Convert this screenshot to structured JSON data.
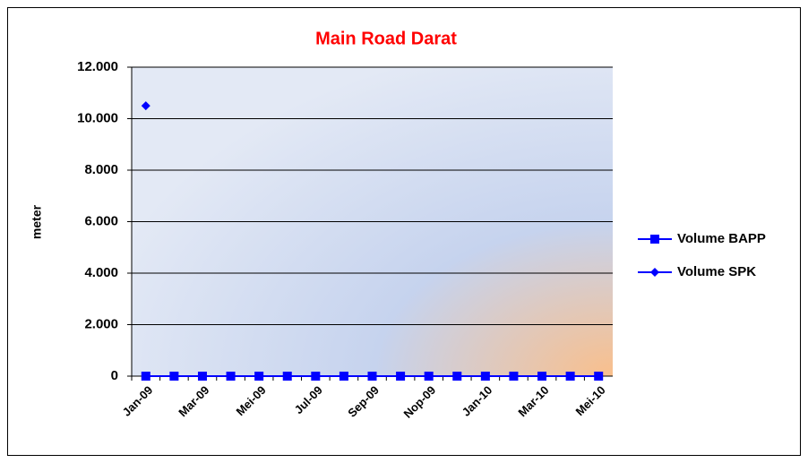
{
  "chart_data": {
    "type": "line",
    "title": "Main Road Darat",
    "y_label": "meter",
    "categories": [
      "Jan-09",
      null,
      "Mar-09",
      null,
      "Mei-09",
      null,
      "Jul-09",
      null,
      "Sep-09",
      null,
      "Nop-09",
      null,
      "Jan-10",
      null,
      "Mar-10",
      null,
      "Mei-10"
    ],
    "series": [
      {
        "name": "Volume BAPP",
        "color": "#0000ff",
        "marker": "square",
        "values": [
          0,
          0,
          0,
          0,
          0,
          0,
          0,
          0,
          0,
          0,
          0,
          0,
          0,
          0,
          0,
          0,
          0
        ]
      },
      {
        "name": "Volume SPK",
        "color": "#0000ff",
        "marker": "diamond",
        "values": [
          10500,
          null,
          null,
          null,
          null,
          null,
          null,
          null,
          null,
          null,
          null,
          null,
          null,
          null,
          null,
          null,
          null
        ]
      }
    ],
    "ylim": [
      0,
      12000
    ],
    "yticks": [
      0,
      {
        "value": 2000,
        "label": "2.000"
      },
      {
        "value": 4000,
        "label": "4.000"
      },
      {
        "value": 6000,
        "label": "6.000"
      },
      {
        "value": 8000,
        "label": "8.000"
      },
      {
        "value": 10000,
        "label": "10.000"
      },
      {
        "value": 12000,
        "label": "12.000"
      }
    ],
    "grid": true,
    "legend": "right"
  }
}
